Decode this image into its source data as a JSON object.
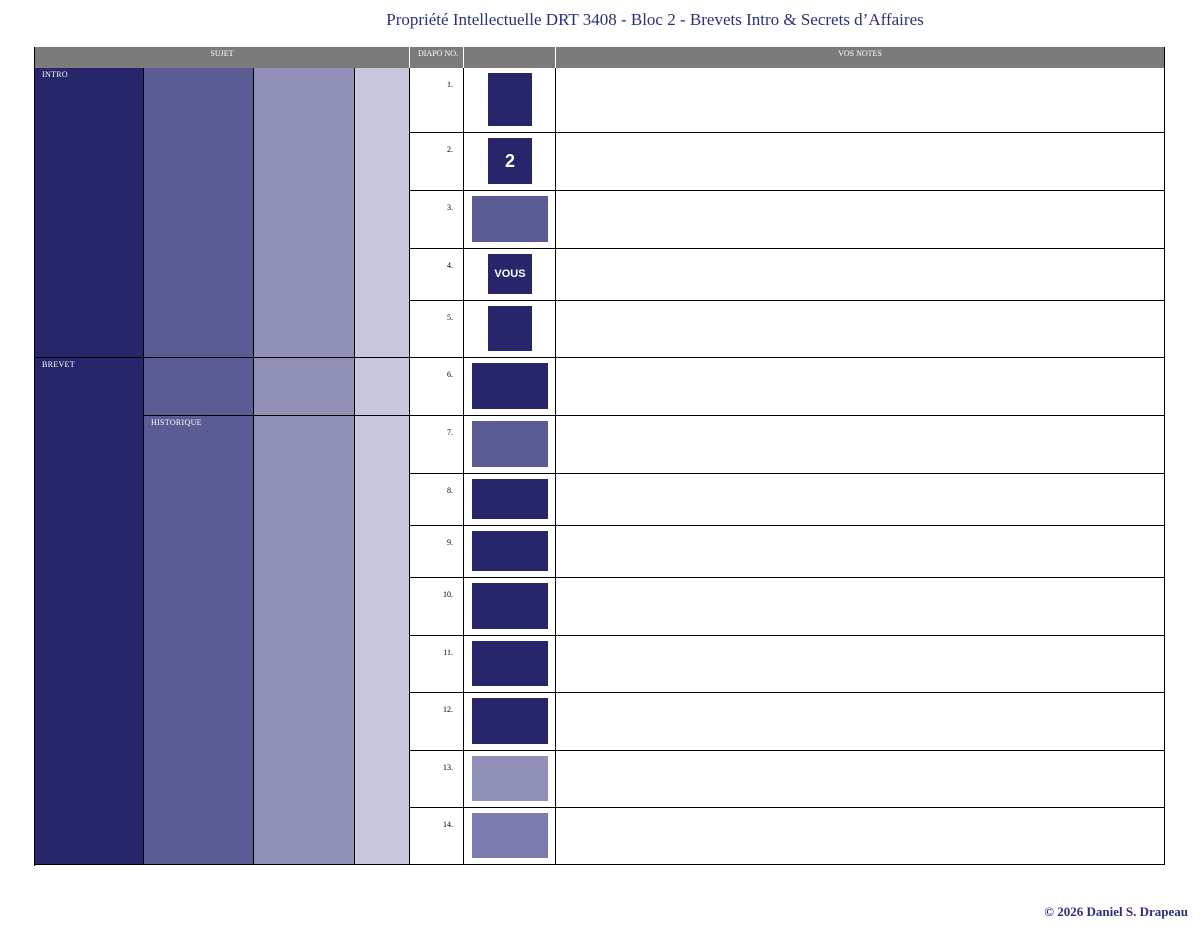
{
  "title": "Propriété Intellectuelle DRT 3408 - Bloc 2  - Brevets Intro & Secrets d’Affaires",
  "header": {
    "sujet": "SUJET",
    "diapo": "DIAPO NO.",
    "notes": "VOS NOTES"
  },
  "sections": [
    {
      "label": "INTRO"
    },
    {
      "label": "BREVET"
    }
  ],
  "subsection": "HISTORIQUE",
  "rows": [
    {
      "number": "1."
    },
    {
      "number": "2.",
      "thumb": "2"
    },
    {
      "number": "3."
    },
    {
      "number": "4.",
      "thumb": "VOUS"
    },
    {
      "number": "5."
    },
    {
      "number": "6."
    },
    {
      "number": "7."
    },
    {
      "number": "8."
    },
    {
      "number": "9."
    },
    {
      "number": "10."
    },
    {
      "number": "11."
    },
    {
      "number": "12."
    },
    {
      "number": "13."
    },
    {
      "number": "14."
    }
  ],
  "footer": "© 2026 Daniel S. Drapeau"
}
